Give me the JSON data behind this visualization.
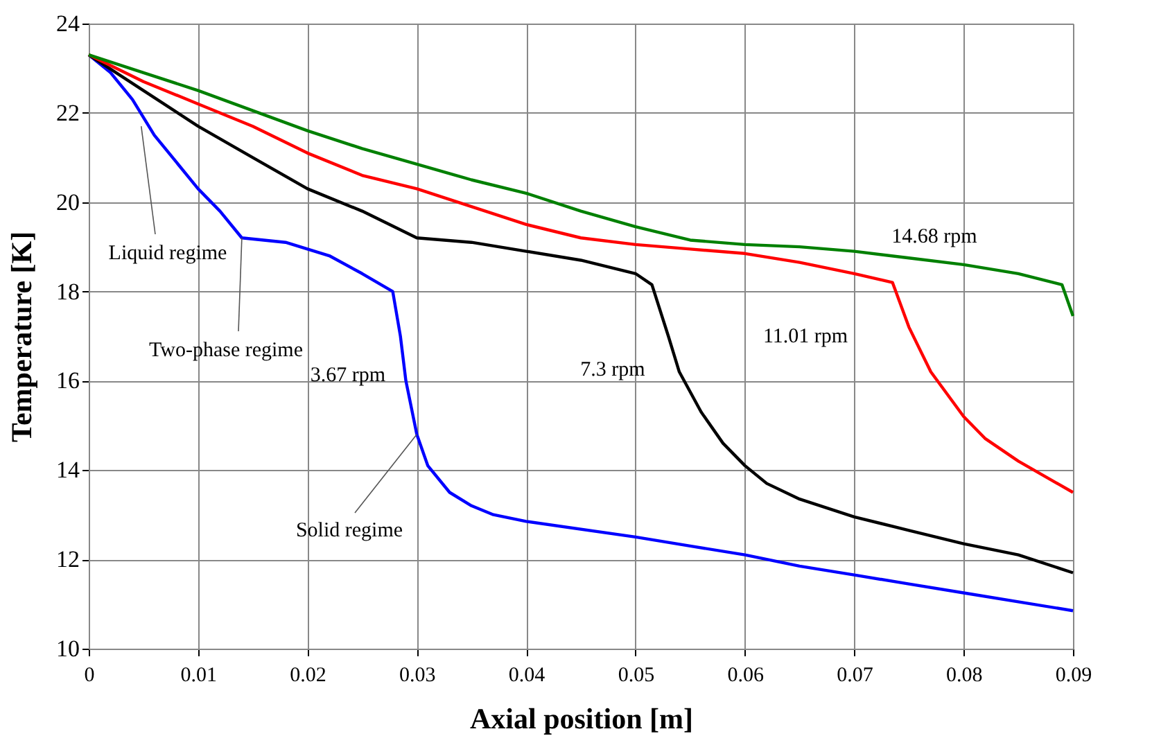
{
  "chart_data": {
    "type": "line",
    "xlabel": "Axial position [m]",
    "ylabel": "Temperature [K]",
    "xlim": [
      0,
      0.09
    ],
    "xticks": [
      0,
      0.01,
      0.02,
      0.03,
      0.04,
      0.05,
      0.06,
      0.07,
      0.08,
      0.09
    ],
    "ylim": [
      10,
      24
    ],
    "yticks": [
      10,
      12,
      14,
      16,
      18,
      20,
      22,
      24
    ],
    "grid": true,
    "line_style": "solid",
    "marker": "none",
    "series": [
      {
        "name": "3.67 rpm",
        "color": "#0000ff",
        "x": [
          0,
          0.002,
          0.004,
          0.006,
          0.008,
          0.01,
          0.012,
          0.014,
          0.018,
          0.022,
          0.025,
          0.0278,
          0.0285,
          0.029,
          0.03,
          0.031,
          0.033,
          0.035,
          0.037,
          0.04,
          0.05,
          0.055,
          0.06,
          0.065,
          0.07,
          0.075,
          0.08,
          0.085,
          0.09
        ],
        "values": [
          23.3,
          22.9,
          22.3,
          21.5,
          20.9,
          20.3,
          19.8,
          19.2,
          19.1,
          18.8,
          18.4,
          18.0,
          17.0,
          16.0,
          14.8,
          14.1,
          13.5,
          13.2,
          13.0,
          12.85,
          12.5,
          12.3,
          12.1,
          11.85,
          11.65,
          11.45,
          11.25,
          11.05,
          10.85
        ]
      },
      {
        "name": "7.3 rpm",
        "color": "#000000",
        "x": [
          0,
          0.005,
          0.01,
          0.015,
          0.02,
          0.025,
          0.03,
          0.035,
          0.04,
          0.045,
          0.05,
          0.0515,
          0.053,
          0.054,
          0.056,
          0.058,
          0.06,
          0.062,
          0.065,
          0.07,
          0.075,
          0.08,
          0.085,
          0.09
        ],
        "values": [
          23.3,
          22.5,
          21.7,
          21.0,
          20.3,
          19.8,
          19.2,
          19.1,
          18.9,
          18.7,
          18.4,
          18.15,
          17.0,
          16.2,
          15.3,
          14.6,
          14.1,
          13.7,
          13.35,
          12.95,
          12.65,
          12.35,
          12.1,
          11.7
        ]
      },
      {
        "name": "11.01 rpm",
        "color": "#ff0000",
        "x": [
          0,
          0.005,
          0.01,
          0.015,
          0.02,
          0.025,
          0.03,
          0.035,
          0.04,
          0.045,
          0.05,
          0.055,
          0.06,
          0.065,
          0.07,
          0.0735,
          0.075,
          0.077,
          0.08,
          0.082,
          0.085,
          0.09
        ],
        "values": [
          23.3,
          22.7,
          22.2,
          21.7,
          21.1,
          20.6,
          20.3,
          19.9,
          19.5,
          19.2,
          19.05,
          18.95,
          18.85,
          18.65,
          18.4,
          18.2,
          17.2,
          16.2,
          15.2,
          14.7,
          14.2,
          13.5
        ]
      },
      {
        "name": "14.68 rpm",
        "color": "#008000",
        "x": [
          0,
          0.005,
          0.01,
          0.015,
          0.02,
          0.025,
          0.03,
          0.035,
          0.04,
          0.045,
          0.05,
          0.055,
          0.06,
          0.065,
          0.07,
          0.075,
          0.08,
          0.085,
          0.089,
          0.09
        ],
        "values": [
          23.3,
          22.9,
          22.5,
          22.05,
          21.6,
          21.2,
          20.85,
          20.5,
          20.2,
          19.8,
          19.45,
          19.15,
          19.05,
          19.0,
          18.9,
          18.75,
          18.6,
          18.4,
          18.15,
          17.45
        ]
      }
    ],
    "annotations": [
      {
        "text": "Liquid regime",
        "x": 0.0048,
        "y": 21.7
      },
      {
        "text": "Two-phase regime",
        "x": 0.014,
        "y": 19.2
      },
      {
        "text": "Solid regime",
        "x": 0.03,
        "y": 14.8
      }
    ]
  }
}
